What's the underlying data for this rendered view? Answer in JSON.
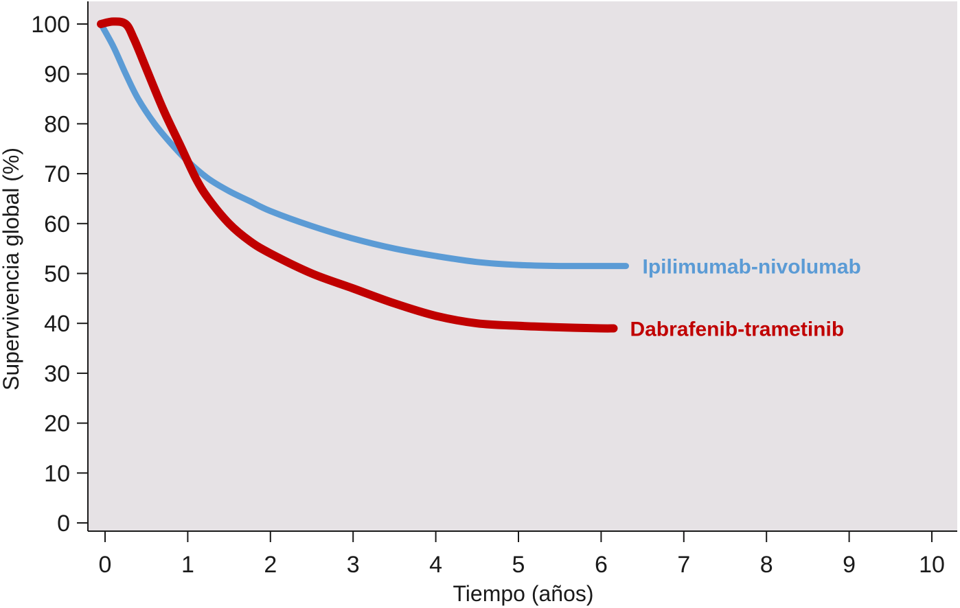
{
  "chart_data": {
    "type": "line",
    "title": "",
    "xlabel": "Tiempo (años)",
    "ylabel": "Supervivencia global (%)",
    "xlim": [
      0,
      10
    ],
    "ylim": [
      0,
      100
    ],
    "x_ticks": [
      "0",
      "1",
      "2",
      "3",
      "4",
      "5",
      "6",
      "7",
      "8",
      "9",
      "10"
    ],
    "y_ticks": [
      "0",
      "10",
      "20",
      "30",
      "40",
      "50",
      "60",
      "70",
      "80",
      "90",
      "100"
    ],
    "grid": false,
    "plot_background": "#e6e2e5",
    "series": [
      {
        "name": "Ipilimumab-nivolumab",
        "color": "#5b9bd5",
        "points": [
          [
            -0.05,
            100
          ],
          [
            0.1,
            95.5
          ],
          [
            0.25,
            90
          ],
          [
            0.4,
            85
          ],
          [
            0.6,
            80
          ],
          [
            0.8,
            76
          ],
          [
            1.0,
            72.5
          ],
          [
            1.25,
            69
          ],
          [
            1.5,
            66.5
          ],
          [
            1.75,
            64.5
          ],
          [
            2.0,
            62.5
          ],
          [
            2.5,
            59.5
          ],
          [
            3.0,
            57
          ],
          [
            3.5,
            55
          ],
          [
            4.0,
            53.5
          ],
          [
            4.5,
            52.3
          ],
          [
            5.0,
            51.7
          ],
          [
            5.5,
            51.5
          ],
          [
            6.0,
            51.5
          ],
          [
            6.3,
            51.5
          ]
        ]
      },
      {
        "name": "Dabrafenib-trametinib",
        "color": "#c00000",
        "points": [
          [
            -0.05,
            100
          ],
          [
            0.1,
            100.5
          ],
          [
            0.25,
            100
          ],
          [
            0.35,
            97
          ],
          [
            0.5,
            91
          ],
          [
            0.7,
            83
          ],
          [
            0.9,
            76
          ],
          [
            1.1,
            69
          ],
          [
            1.25,
            65
          ],
          [
            1.5,
            60
          ],
          [
            1.75,
            56.5
          ],
          [
            2.0,
            54
          ],
          [
            2.5,
            50
          ],
          [
            3.0,
            47
          ],
          [
            3.5,
            44
          ],
          [
            4.0,
            41.5
          ],
          [
            4.5,
            40
          ],
          [
            5.0,
            39.5
          ],
          [
            5.5,
            39.2
          ],
          [
            6.0,
            39
          ],
          [
            6.15,
            39
          ]
        ]
      }
    ]
  }
}
